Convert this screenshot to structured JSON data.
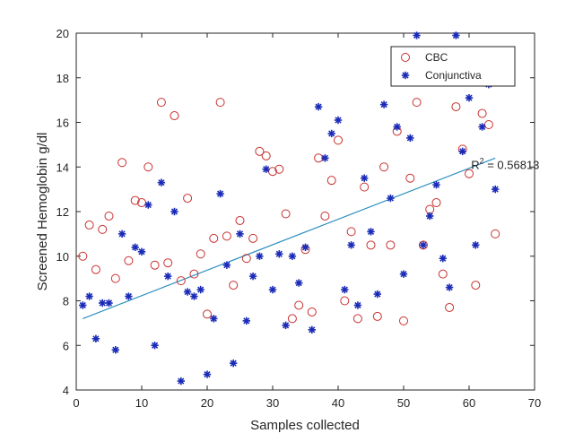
{
  "chart_data": {
    "type": "scatter",
    "title": "",
    "xlabel": "Samples collected",
    "ylabel": "Screened Hemoglobin g/dl",
    "xlim": [
      0,
      70
    ],
    "ylim": [
      4,
      20
    ],
    "xticks": [
      0,
      10,
      20,
      30,
      40,
      50,
      60,
      70
    ],
    "yticks": [
      4,
      6,
      8,
      10,
      12,
      14,
      16,
      18,
      20
    ],
    "grid": false,
    "legend_position": "top-right",
    "series": [
      {
        "name": "CBC",
        "marker": "circle",
        "color": "#c8312f",
        "points": [
          [
            1,
            10.0
          ],
          [
            2,
            11.4
          ],
          [
            3,
            9.4
          ],
          [
            4,
            11.2
          ],
          [
            5,
            11.8
          ],
          [
            6,
            9.0
          ],
          [
            7,
            14.2
          ],
          [
            8,
            9.8
          ],
          [
            9,
            12.5
          ],
          [
            10,
            12.4
          ],
          [
            11,
            14.0
          ],
          [
            12,
            9.6
          ],
          [
            13,
            16.9
          ],
          [
            14,
            9.7
          ],
          [
            15,
            16.3
          ],
          [
            16,
            8.9
          ],
          [
            17,
            12.6
          ],
          [
            18,
            9.2
          ],
          [
            19,
            10.1
          ],
          [
            20,
            7.4
          ],
          [
            21,
            10.8
          ],
          [
            22,
            16.9
          ],
          [
            23,
            10.9
          ],
          [
            24,
            8.7
          ],
          [
            25,
            11.6
          ],
          [
            26,
            9.9
          ],
          [
            27,
            10.8
          ],
          [
            28,
            14.7
          ],
          [
            29,
            14.5
          ],
          [
            30,
            13.8
          ],
          [
            31,
            13.9
          ],
          [
            32,
            11.9
          ],
          [
            33,
            7.2
          ],
          [
            34,
            7.8
          ],
          [
            35,
            10.3
          ],
          [
            36,
            7.5
          ],
          [
            37,
            14.4
          ],
          [
            38,
            11.8
          ],
          [
            39,
            13.4
          ],
          [
            40,
            15.2
          ],
          [
            41,
            8.0
          ],
          [
            42,
            11.1
          ],
          [
            43,
            7.2
          ],
          [
            44,
            13.1
          ],
          [
            45,
            10.5
          ],
          [
            46,
            7.3
          ],
          [
            47,
            14.0
          ],
          [
            48,
            10.5
          ],
          [
            49,
            15.6
          ],
          [
            50,
            7.1
          ],
          [
            51,
            13.5
          ],
          [
            52,
            16.9
          ],
          [
            53,
            10.5
          ],
          [
            54,
            12.1
          ],
          [
            55,
            12.4
          ],
          [
            56,
            9.2
          ],
          [
            57,
            7.7
          ],
          [
            58,
            16.7
          ],
          [
            59,
            14.8
          ],
          [
            60,
            13.7
          ],
          [
            61,
            8.7
          ],
          [
            62,
            16.4
          ],
          [
            63,
            15.9
          ],
          [
            64,
            11.0
          ]
        ]
      },
      {
        "name": "Conjunctiva",
        "marker": "asterisk",
        "color": "#1a2bb8",
        "points": [
          [
            1,
            7.8
          ],
          [
            2,
            8.2
          ],
          [
            3,
            6.3
          ],
          [
            4,
            7.9
          ],
          [
            5,
            7.9
          ],
          [
            6,
            5.8
          ],
          [
            7,
            11.0
          ],
          [
            8,
            8.2
          ],
          [
            9,
            10.4
          ],
          [
            10,
            10.2
          ],
          [
            11,
            12.3
          ],
          [
            12,
            6.0
          ],
          [
            13,
            13.3
          ],
          [
            14,
            9.1
          ],
          [
            15,
            12.0
          ],
          [
            16,
            4.4
          ],
          [
            17,
            8.4
          ],
          [
            18,
            8.2
          ],
          [
            19,
            8.5
          ],
          [
            20,
            4.7
          ],
          [
            21,
            7.2
          ],
          [
            22,
            12.8
          ],
          [
            23,
            9.6
          ],
          [
            24,
            5.2
          ],
          [
            25,
            11.0
          ],
          [
            26,
            7.1
          ],
          [
            27,
            9.1
          ],
          [
            28,
            10.0
          ],
          [
            29,
            13.9
          ],
          [
            30,
            8.5
          ],
          [
            31,
            10.1
          ],
          [
            32,
            6.9
          ],
          [
            33,
            10.0
          ],
          [
            34,
            8.8
          ],
          [
            35,
            10.4
          ],
          [
            36,
            6.7
          ],
          [
            37,
            16.7
          ],
          [
            38,
            14.4
          ],
          [
            39,
            15.5
          ],
          [
            40,
            16.1
          ],
          [
            41,
            8.5
          ],
          [
            42,
            10.5
          ],
          [
            43,
            7.8
          ],
          [
            44,
            13.5
          ],
          [
            45,
            11.1
          ],
          [
            46,
            8.3
          ],
          [
            47,
            16.8
          ],
          [
            48,
            12.6
          ],
          [
            49,
            15.8
          ],
          [
            50,
            9.2
          ],
          [
            51,
            15.3
          ],
          [
            52,
            19.9
          ],
          [
            53,
            10.5
          ],
          [
            54,
            11.8
          ],
          [
            55,
            13.2
          ],
          [
            56,
            9.9
          ],
          [
            57,
            8.6
          ],
          [
            58,
            19.9
          ],
          [
            59,
            14.7
          ],
          [
            60,
            17.1
          ],
          [
            61,
            10.5
          ],
          [
            62,
            15.8
          ],
          [
            63,
            17.7
          ],
          [
            64,
            13.0
          ]
        ]
      }
    ],
    "trendline": {
      "color": "#2b8ec0",
      "x_range": [
        1,
        64
      ],
      "y_range": [
        7.2,
        14.4
      ]
    },
    "annotations": [
      {
        "text": "R",
        "superscript": "2",
        "suffix": " = 0.56813",
        "x": 60.3,
        "y": 13.9
      }
    ]
  }
}
